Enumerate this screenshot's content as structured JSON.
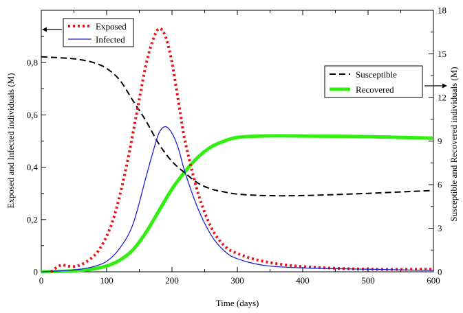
{
  "chart_data": {
    "type": "line",
    "title": "",
    "xlabel": "Time (days)",
    "ylabel_left": "Exposed and Infected individuals (M)",
    "ylabel_right": "Susceptible and Recovered individuals (M)",
    "xlim": [
      0,
      600
    ],
    "ylim_left": [
      0,
      1.0
    ],
    "ylim_right": [
      0,
      18
    ],
    "x_ticks": [
      "0",
      "100",
      "200",
      "300",
      "400",
      "500",
      "600"
    ],
    "y_left_ticks": [
      "0",
      "0,2",
      "0,4",
      "0,6",
      "0,8"
    ],
    "y_right_ticks": [
      "0",
      "3",
      "6",
      "9",
      "12",
      "15",
      "18"
    ],
    "grid": false,
    "legend_left_position": "top-left",
    "legend_right_position": "right",
    "series": [
      {
        "name": "Exposed",
        "axis": "left",
        "color": "#e8141b",
        "style": "dotted",
        "x": [
          15,
          30,
          50,
          70,
          90,
          110,
          130,
          150,
          160,
          170,
          180,
          190,
          200,
          210,
          220,
          240,
          260,
          280,
          300,
          340,
          400,
          500,
          600
        ],
        "y": [
          0.0,
          0.025,
          0.02,
          0.04,
          0.09,
          0.2,
          0.4,
          0.66,
          0.79,
          0.88,
          0.93,
          0.9,
          0.8,
          0.65,
          0.5,
          0.3,
          0.17,
          0.1,
          0.07,
          0.04,
          0.02,
          0.01,
          0.01
        ]
      },
      {
        "name": "Infected",
        "axis": "left",
        "color": "#1f1fd1",
        "style": "solid",
        "x": [
          0,
          40,
          60,
          80,
          100,
          120,
          140,
          160,
          170,
          180,
          190,
          200,
          210,
          220,
          240,
          260,
          280,
          300,
          340,
          400,
          500,
          600
        ],
        "y": [
          0.0,
          0.005,
          0.01,
          0.02,
          0.04,
          0.09,
          0.18,
          0.36,
          0.45,
          0.53,
          0.555,
          0.53,
          0.47,
          0.38,
          0.24,
          0.14,
          0.08,
          0.05,
          0.025,
          0.015,
          0.01,
          0.005
        ]
      },
      {
        "name": "Susceptible",
        "axis": "right",
        "color": "#000000",
        "style": "dashed",
        "x": [
          0,
          40,
          60,
          80,
          100,
          120,
          140,
          160,
          180,
          200,
          220,
          240,
          260,
          280,
          300,
          340,
          400,
          500,
          600
        ],
        "y": [
          14.8,
          14.7,
          14.6,
          14.4,
          14.0,
          13.2,
          11.8,
          10.4,
          8.8,
          7.6,
          6.8,
          6.1,
          5.7,
          5.5,
          5.35,
          5.25,
          5.25,
          5.4,
          5.6
        ]
      },
      {
        "name": "Recovered",
        "axis": "right",
        "color": "#33ee11",
        "style": "thick",
        "x": [
          0,
          40,
          60,
          80,
          100,
          120,
          140,
          160,
          180,
          200,
          220,
          240,
          260,
          280,
          300,
          340,
          400,
          500,
          600
        ],
        "y": [
          0.0,
          0.05,
          0.1,
          0.2,
          0.4,
          0.8,
          1.5,
          2.7,
          4.2,
          5.7,
          6.9,
          7.9,
          8.6,
          9.0,
          9.25,
          9.35,
          9.35,
          9.3,
          9.2
        ]
      }
    ],
    "annotations": {
      "left_arrow": "points to left axis",
      "right_arrow": "points to right axis"
    }
  }
}
